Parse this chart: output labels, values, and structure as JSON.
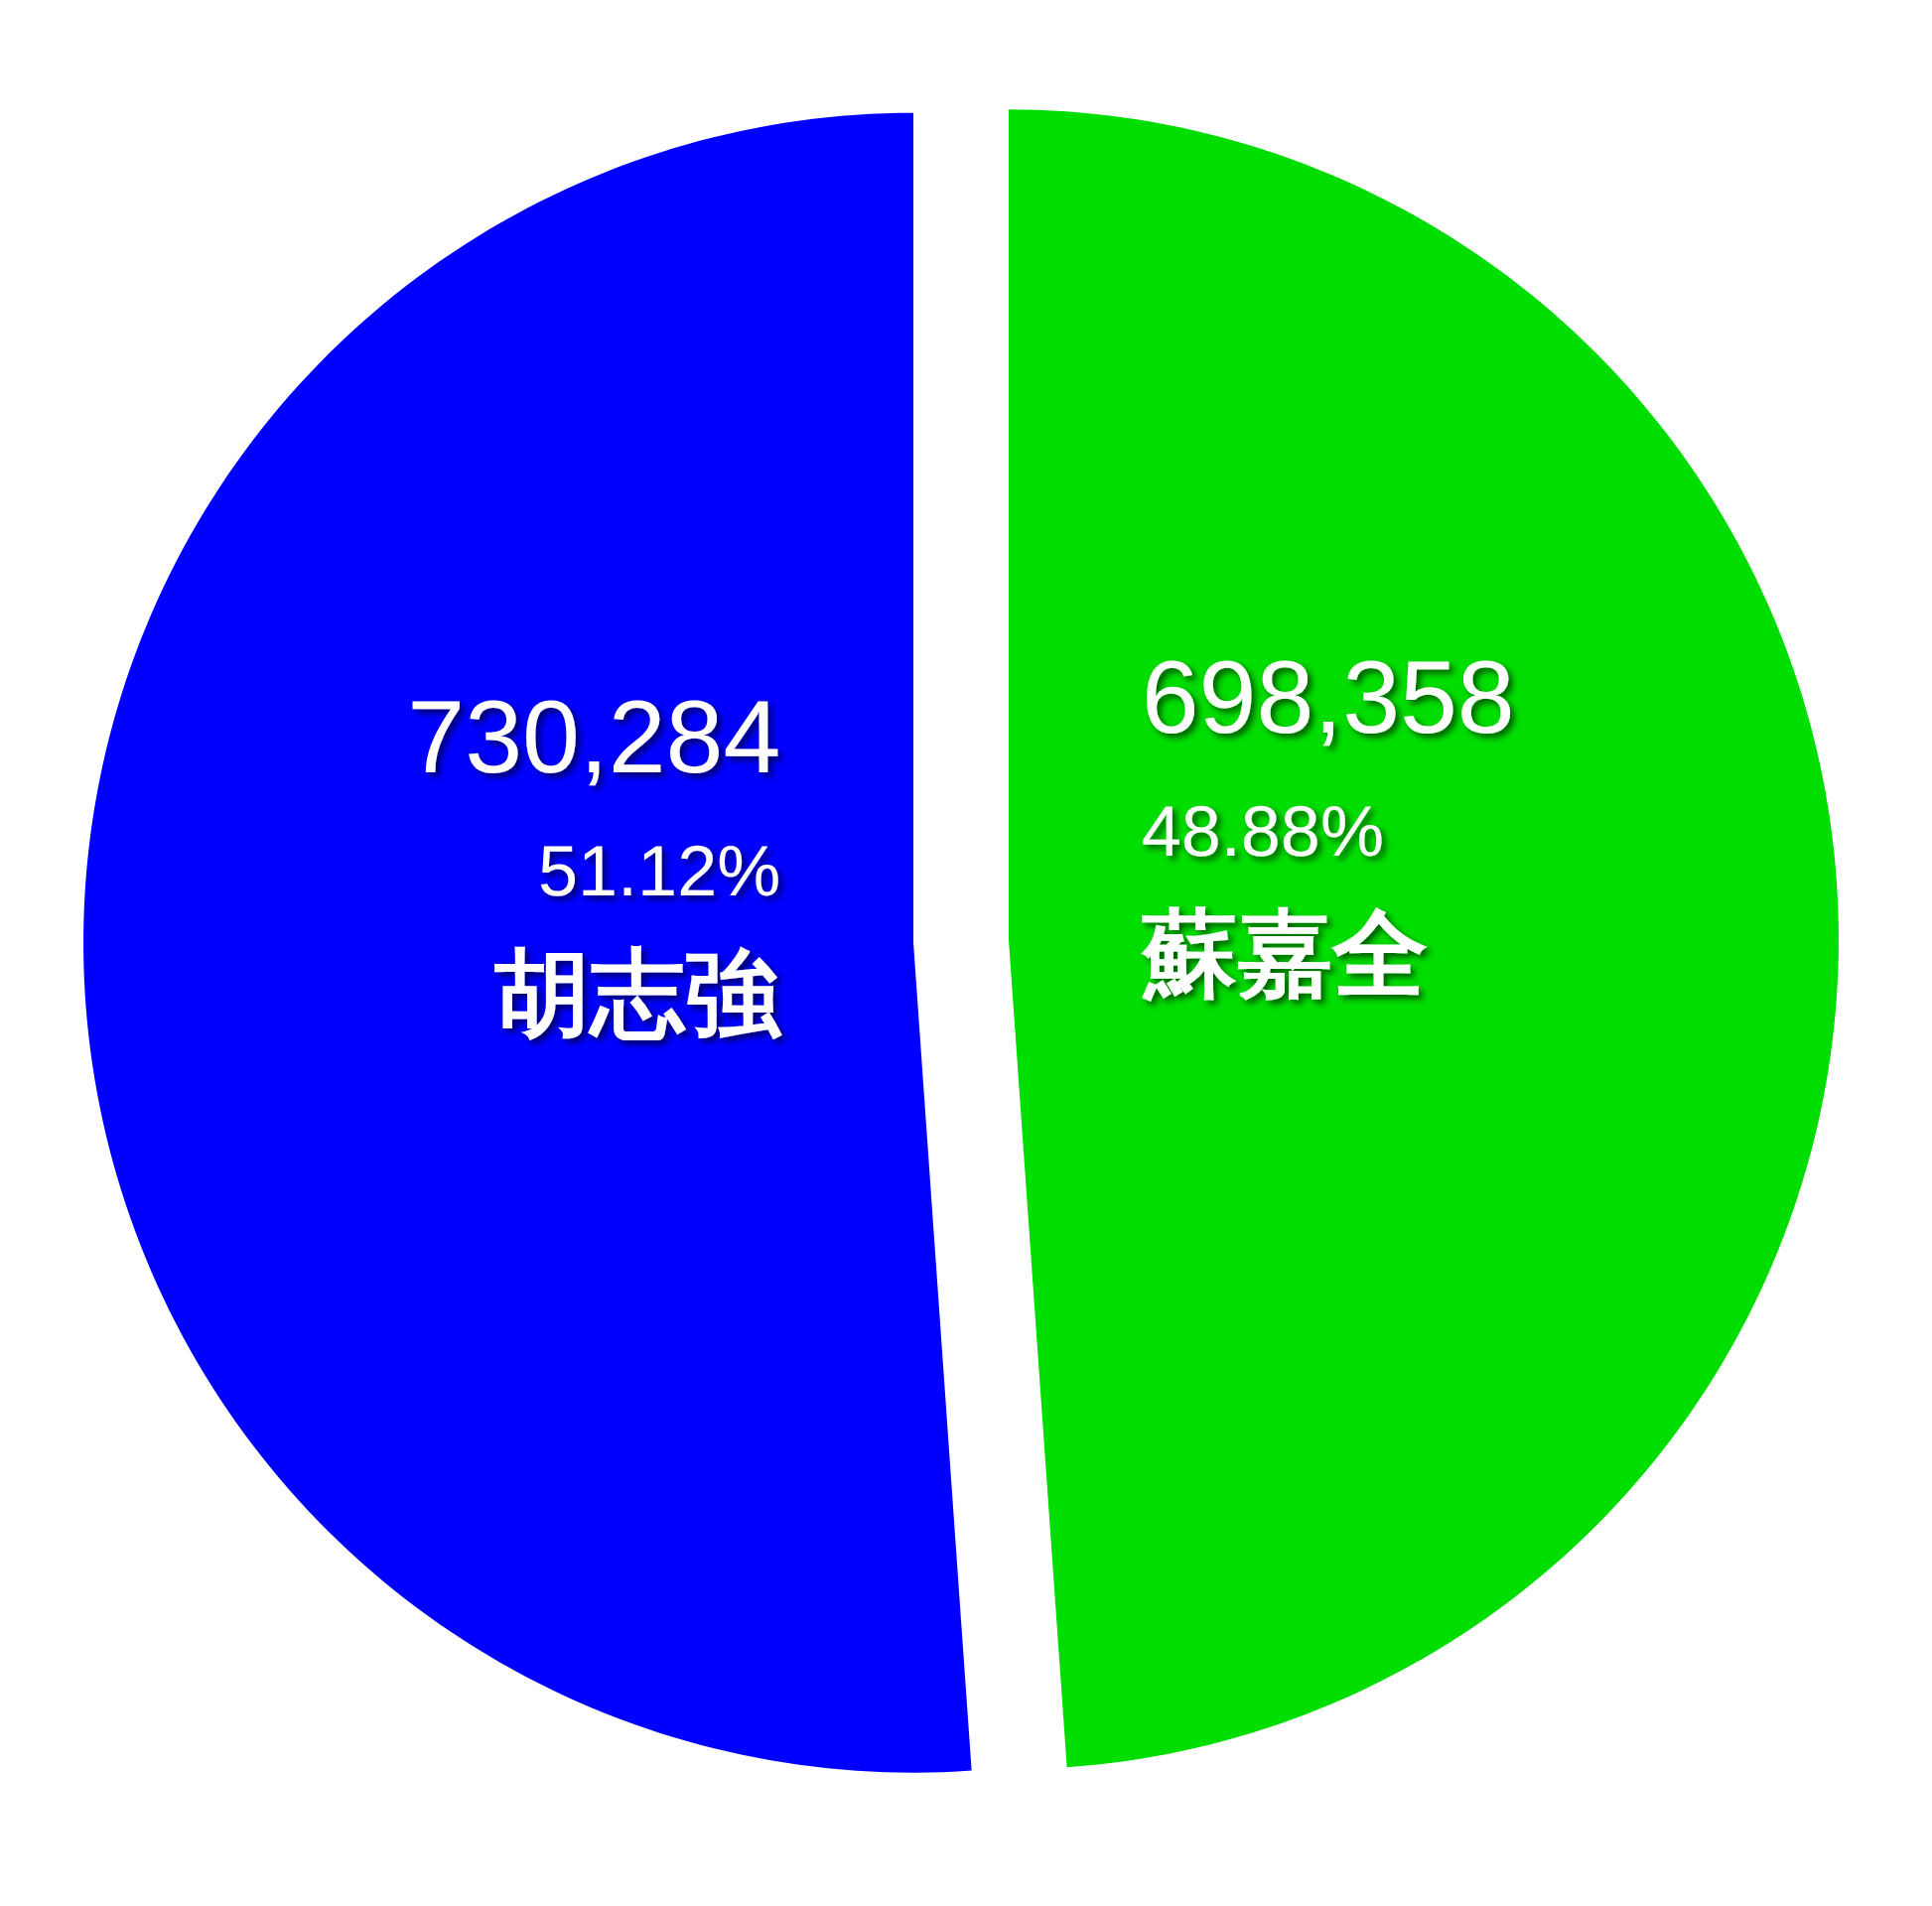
{
  "chart_data": {
    "type": "pie",
    "categories": [
      "蘇嘉全",
      "胡志強"
    ],
    "values": [
      698358,
      730284
    ],
    "colors": [
      "#00dd00",
      "#0000ff"
    ],
    "value_labels": [
      "698,358\n48.88%",
      "730,284\n51.12%"
    ]
  }
}
